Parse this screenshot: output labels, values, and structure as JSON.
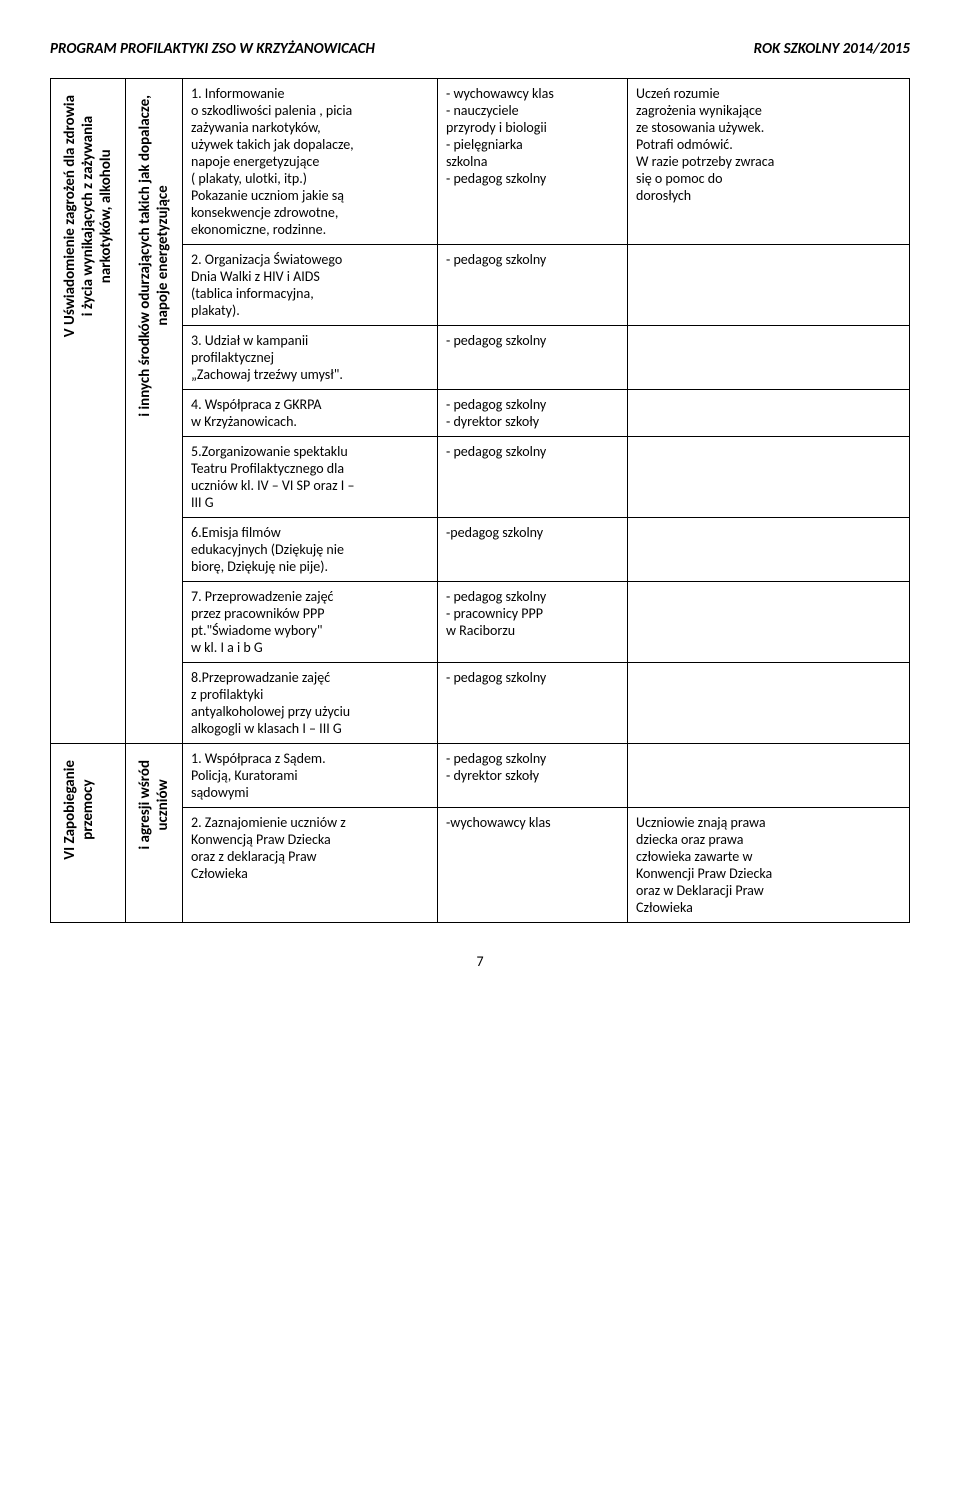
{
  "header": {
    "left": "PROGRAM PROFILAKTYKI ZSO W KRZYŻANOWICACH",
    "right": "ROK SZKOLNY 2014/2015"
  },
  "sections": {
    "v": {
      "vert1": "V Uświadomienie zagrożeń dla zdrowia\ni życia wynikających z zażywania\nnarkotyków, alkoholu",
      "vert2": "i innych środków odurzających takich jak dopalacze,\nnapoje energetyzujące",
      "rows": [
        {
          "activity": "1. Informowanie\no szkodliwości palenia , picia\nzażywania narkotyków,\nużywek takich jak dopalacze,\nnapoje energetyzujące\n( plakaty, ulotki, itp.)\nPokazanie uczniom jakie są\nkonsekwencje zdrowotne,\nekonomiczne, rodzinne.",
          "who": "- wychowawcy klas\n- nauczyciele\nprzyrody i biologii\n- pielęgniarka\nszkolna\n- pedagog szkolny",
          "outcome": "Uczeń rozumie\nzagrożenia wynikające\nze stosowania używek.\nPotrafi odmówić.\nW razie potrzeby zwraca\nsię o pomoc do\ndorosłych"
        },
        {
          "activity": "2. Organizacja Światowego\nDnia Walki z HIV i AIDS\n(tablica informacyjna,\nplakaty).",
          "who": "- pedagog szkolny",
          "outcome": ""
        },
        {
          "activity": "3. Udział w kampanii\nprofilaktycznej\n„Zachowaj trzeźwy umysł\".",
          "who": "- pedagog szkolny",
          "outcome": ""
        },
        {
          "activity": "4. Współpraca z GKRPA\nw Krzyżanowicach.",
          "who": "- pedagog szkolny\n- dyrektor szkoły",
          "outcome": ""
        },
        {
          "activity": "5.Zorganizowanie spektaklu\nTeatru Profilaktycznego dla\nuczniów kl. IV – VI SP oraz I –\nIII G",
          "who": "- pedagog szkolny",
          "outcome": ""
        },
        {
          "activity": "6.Emisja filmów\nedukacyjnych (Dziękuję nie\nbiorę, Dziękuję nie pije).",
          "who": "-pedagog szkolny",
          "outcome": ""
        },
        {
          "activity": "7. Przeprowadzenie zajęć\nprzez pracowników PPP\npt.\"Świadome wybory\"\nw kl. I a i b G",
          "who": "- pedagog szkolny\n- pracownicy PPP\nw Raciborzu",
          "outcome": ""
        },
        {
          "activity": "8.Przeprowadzanie zajęć\nz profilaktyki\nantyalkoholowej przy użyciu\nalkogogli w klasach I – III G",
          "who": "- pedagog szkolny",
          "outcome": ""
        }
      ]
    },
    "vi": {
      "vert1": "VI  Zapobieganie\nprzemocy",
      "vert2": "i agresji wśród\nuczniów",
      "rows": [
        {
          "activity": "1. Współpraca z Sądem.\nPolicją, Kuratorami\nsądowymi",
          "who": "- pedagog szkolny\n- dyrektor szkoły",
          "outcome": ""
        },
        {
          "activity": "2. Zaznajomienie uczniów z\nKonwencją Praw Dziecka\noraz z deklaracją Praw\nCzłowieka",
          "who": "-wychowawcy klas",
          "outcome": "Uczniowie znają prawa\ndziecka oraz prawa\nczłowieka zawarte w\nKonwencji Praw Dziecka\noraz w Deklaracji  Praw\nCzłowieka"
        }
      ]
    }
  },
  "pageNumber": "7"
}
